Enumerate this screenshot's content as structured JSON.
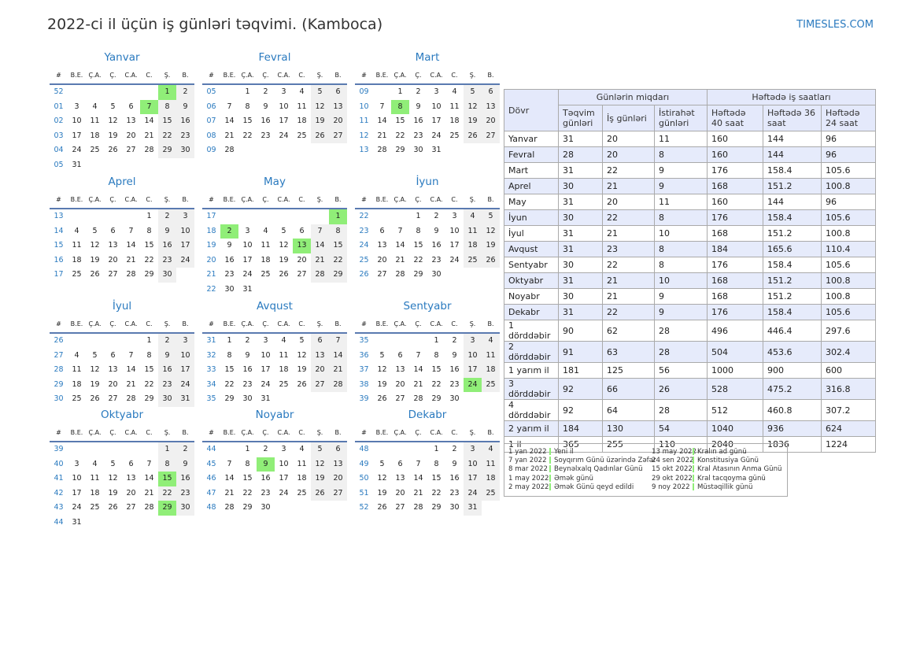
{
  "title": "2022-ci il üçün iş günləri təqvimi. (Kamboca)",
  "site": "TIMESLES.COM",
  "colors": {
    "accent": "#2a7abf",
    "holiday": "#90ee78",
    "weekend": "#f0f0f0"
  },
  "weekday_header": [
    "#",
    "B.E.",
    "Ç.A.",
    "Ç.",
    "C.A.",
    "C.",
    "Ş.",
    "B."
  ],
  "months": [
    {
      "name": "Yanvar",
      "first_weekday": 5,
      "days": 31,
      "weeks": [
        "52",
        "01",
        "02",
        "03",
        "04",
        "05"
      ],
      "holidays": [
        1,
        7
      ]
    },
    {
      "name": "Fevral",
      "first_weekday": 1,
      "days": 28,
      "weeks": [
        "05",
        "06",
        "07",
        "08",
        "09"
      ],
      "holidays": []
    },
    {
      "name": "Mart",
      "first_weekday": 1,
      "days": 31,
      "weeks": [
        "09",
        "10",
        "11",
        "12",
        "13"
      ],
      "holidays": [
        8
      ]
    },
    {
      "name": "Aprel",
      "first_weekday": 4,
      "days": 30,
      "weeks": [
        "13",
        "14",
        "15",
        "16",
        "17"
      ],
      "holidays": []
    },
    {
      "name": "May",
      "first_weekday": 6,
      "days": 31,
      "weeks": [
        "17",
        "18",
        "19",
        "20",
        "21",
        "22"
      ],
      "holidays": [
        1,
        2,
        13
      ]
    },
    {
      "name": "İyun",
      "first_weekday": 2,
      "days": 30,
      "weeks": [
        "22",
        "23",
        "24",
        "25",
        "26"
      ],
      "holidays": []
    },
    {
      "name": "İyul",
      "first_weekday": 4,
      "days": 31,
      "weeks": [
        "26",
        "27",
        "28",
        "29",
        "30"
      ],
      "holidays": []
    },
    {
      "name": "Avqust",
      "first_weekday": 0,
      "days": 31,
      "weeks": [
        "31",
        "32",
        "33",
        "34",
        "35"
      ],
      "holidays": []
    },
    {
      "name": "Sentyabr",
      "first_weekday": 3,
      "days": 30,
      "weeks": [
        "35",
        "36",
        "37",
        "38",
        "39"
      ],
      "holidays": [
        24
      ]
    },
    {
      "name": "Oktyabr",
      "first_weekday": 5,
      "days": 31,
      "weeks": [
        "39",
        "40",
        "41",
        "42",
        "43",
        "44"
      ],
      "holidays": [
        15,
        29
      ]
    },
    {
      "name": "Noyabr",
      "first_weekday": 1,
      "days": 30,
      "weeks": [
        "44",
        "45",
        "46",
        "47",
        "48"
      ],
      "holidays": [
        9
      ]
    },
    {
      "name": "Dekabr",
      "first_weekday": 3,
      "days": 31,
      "weeks": [
        "48",
        "49",
        "50",
        "51",
        "52"
      ],
      "holidays": []
    }
  ],
  "table": {
    "period": "Dövr",
    "group_days": "Günlərin miqdarı",
    "group_hours": "Həftədə iş saatları",
    "cols": [
      "Təqvim günləri",
      "İş günləri",
      "İstirahət günləri",
      "Həftədə 40 saat",
      "Həftədə 36 saat",
      "Həftədə 24 saat"
    ],
    "rows": [
      [
        "Yanvar",
        "31",
        "20",
        "11",
        "160",
        "144",
        "96"
      ],
      [
        "Fevral",
        "28",
        "20",
        "8",
        "160",
        "144",
        "96"
      ],
      [
        "Mart",
        "31",
        "22",
        "9",
        "176",
        "158.4",
        "105.6"
      ],
      [
        "Aprel",
        "30",
        "21",
        "9",
        "168",
        "151.2",
        "100.8"
      ],
      [
        "May",
        "31",
        "20",
        "11",
        "160",
        "144",
        "96"
      ],
      [
        "İyun",
        "30",
        "22",
        "8",
        "176",
        "158.4",
        "105.6"
      ],
      [
        "İyul",
        "31",
        "21",
        "10",
        "168",
        "151.2",
        "100.8"
      ],
      [
        "Avqust",
        "31",
        "23",
        "8",
        "184",
        "165.6",
        "110.4"
      ],
      [
        "Sentyabr",
        "30",
        "22",
        "8",
        "176",
        "158.4",
        "105.6"
      ],
      [
        "Oktyabr",
        "31",
        "21",
        "10",
        "168",
        "151.2",
        "100.8"
      ],
      [
        "Noyabr",
        "30",
        "21",
        "9",
        "168",
        "151.2",
        "100.8"
      ],
      [
        "Dekabr",
        "31",
        "22",
        "9",
        "176",
        "158.4",
        "105.6"
      ],
      [
        "1 dörddəbir",
        "90",
        "62",
        "28",
        "496",
        "446.4",
        "297.6"
      ],
      [
        "2 dörddəbir",
        "91",
        "63",
        "28",
        "504",
        "453.6",
        "302.4"
      ],
      [
        "1 yarım il",
        "181",
        "125",
        "56",
        "1000",
        "900",
        "600"
      ],
      [
        "3 dörddəbir",
        "92",
        "66",
        "26",
        "528",
        "475.2",
        "316.8"
      ],
      [
        "4 dörddəbir",
        "92",
        "64",
        "28",
        "512",
        "460.8",
        "307.2"
      ],
      [
        "2 yarım il",
        "184",
        "130",
        "54",
        "1040",
        "936",
        "624"
      ],
      [
        "1 il",
        "365",
        "255",
        "110",
        "2040",
        "1836",
        "1224"
      ]
    ]
  },
  "holidays_legend": [
    {
      "date": "1 yan 2022",
      "name": "Yeni il"
    },
    {
      "date": "7 yan 2022",
      "name": "Soyqırım Günü üzərində Zəfər"
    },
    {
      "date": "8 mar 2022",
      "name": "Beynəlxalq Qadınlar Günü"
    },
    {
      "date": "1 may 2022",
      "name": "Əmək günü"
    },
    {
      "date": "2 may 2022",
      "name": "Əmək Günü qeyd edildi"
    },
    {
      "date": "13 may 2022",
      "name": "Kralın ad günü"
    },
    {
      "date": "24 sen 2022",
      "name": "Konstitusiya Günü"
    },
    {
      "date": "15 okt 2022",
      "name": "Kral Atasının Anma Günü"
    },
    {
      "date": "29 okt 2022",
      "name": "Kral tacqoyma günü"
    },
    {
      "date": "9 noy 2022",
      "name": "Müstəqillik günü"
    }
  ]
}
